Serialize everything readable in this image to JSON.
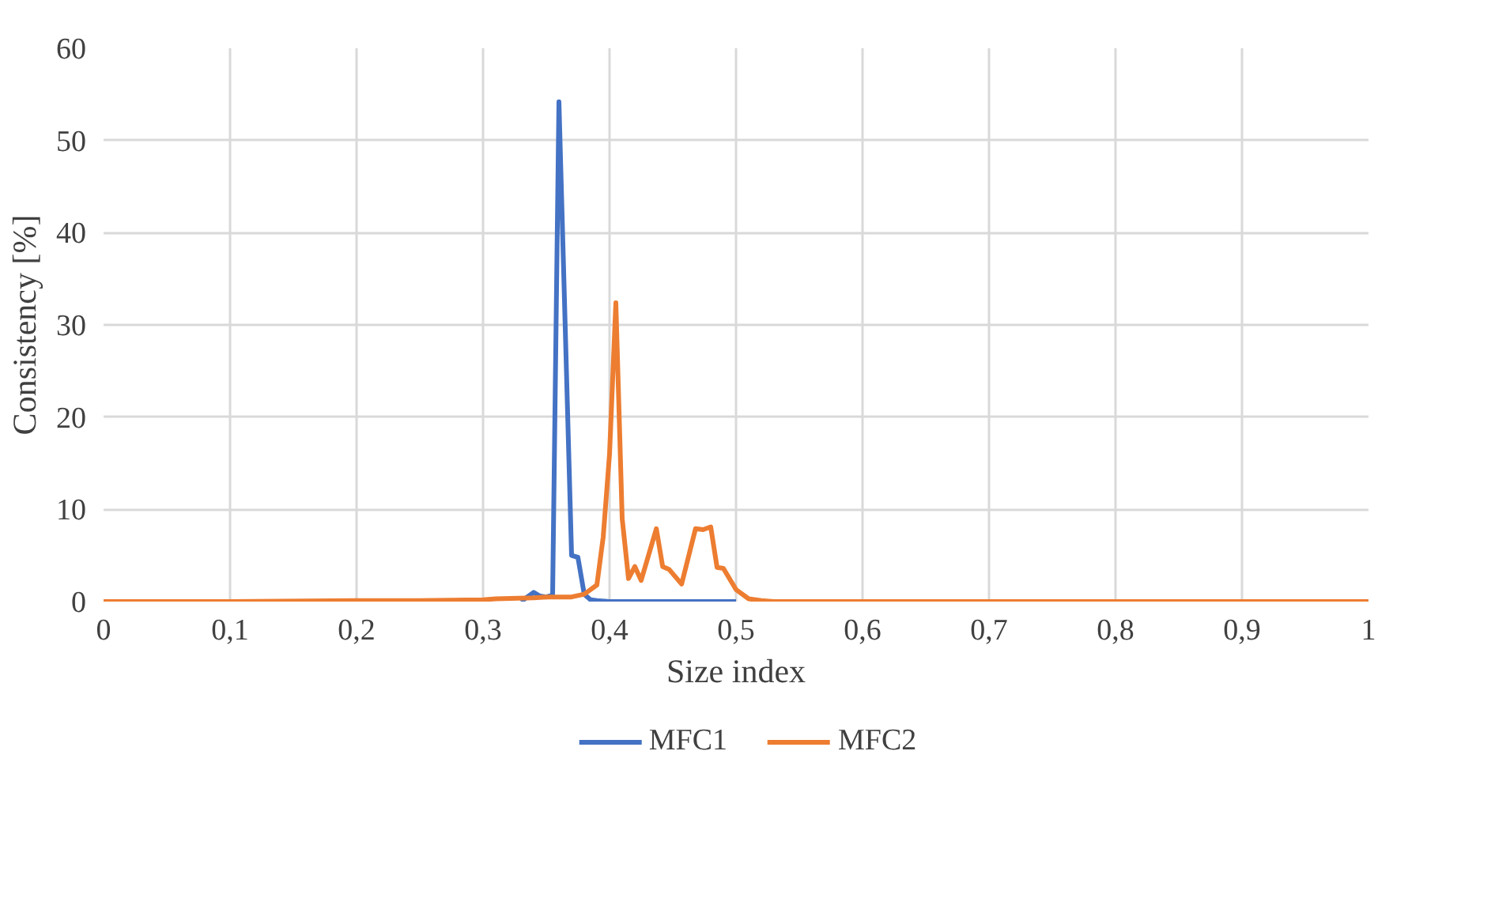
{
  "chart_data": {
    "type": "line",
    "xlabel": "Size index",
    "ylabel": "Consistency [%]",
    "xlim": [
      0,
      1
    ],
    "ylim": [
      0,
      60
    ],
    "xticks": [
      0,
      {
        "value": 0.1,
        "label": "0,1"
      },
      {
        "value": 0.2,
        "label": "0,2"
      },
      {
        "value": 0.3,
        "label": "0,3"
      },
      {
        "value": 0.4,
        "label": "0,4"
      },
      {
        "value": 0.5,
        "label": "0,5"
      },
      {
        "value": 0.6,
        "label": "0,6"
      },
      {
        "value": 0.7,
        "label": "0,7"
      },
      {
        "value": 0.8,
        "label": "0,8"
      },
      {
        "value": 0.9,
        "label": "0,9"
      },
      1
    ],
    "yticks": [
      0,
      10,
      20,
      30,
      40,
      50,
      60
    ],
    "grid": true,
    "legend": "bottom",
    "marker": "none",
    "line_style": "solid",
    "series": [
      {
        "name": "MFC1",
        "color": "#4472c4",
        "x": [
          0.33,
          0.34,
          0.345,
          0.35,
          0.355,
          0.36,
          0.37,
          0.375,
          0.38,
          0.385,
          0.39,
          0.4,
          0.5
        ],
        "values": [
          0,
          1.0,
          0.6,
          0.5,
          0.7,
          54.2,
          5.0,
          4.8,
          0.8,
          0.2,
          0.1,
          0,
          0
        ]
      },
      {
        "name": "MFC2",
        "color": "#ed7d31",
        "x": [
          0,
          0.1,
          0.2,
          0.25,
          0.3,
          0.31,
          0.34,
          0.35,
          0.37,
          0.38,
          0.39,
          0.395,
          0.4,
          0.405,
          0.41,
          0.415,
          0.42,
          0.425,
          0.437,
          0.442,
          0.447,
          0.457,
          0.468,
          0.474,
          0.48,
          0.485,
          0.49,
          0.5,
          0.51,
          0.52,
          0.53,
          0.6,
          0.7,
          0.8,
          0.9,
          1
        ],
        "values": [
          0,
          0,
          0.1,
          0.1,
          0.2,
          0.3,
          0.4,
          0.5,
          0.5,
          0.8,
          1.8,
          7,
          16,
          32.4,
          9,
          2.5,
          3.8,
          2.3,
          7.9,
          3.8,
          3.5,
          1.9,
          7.9,
          7.8,
          8.1,
          3.7,
          3.6,
          1.3,
          0.3,
          0.1,
          0,
          0,
          0,
          0,
          0,
          0
        ]
      }
    ]
  }
}
